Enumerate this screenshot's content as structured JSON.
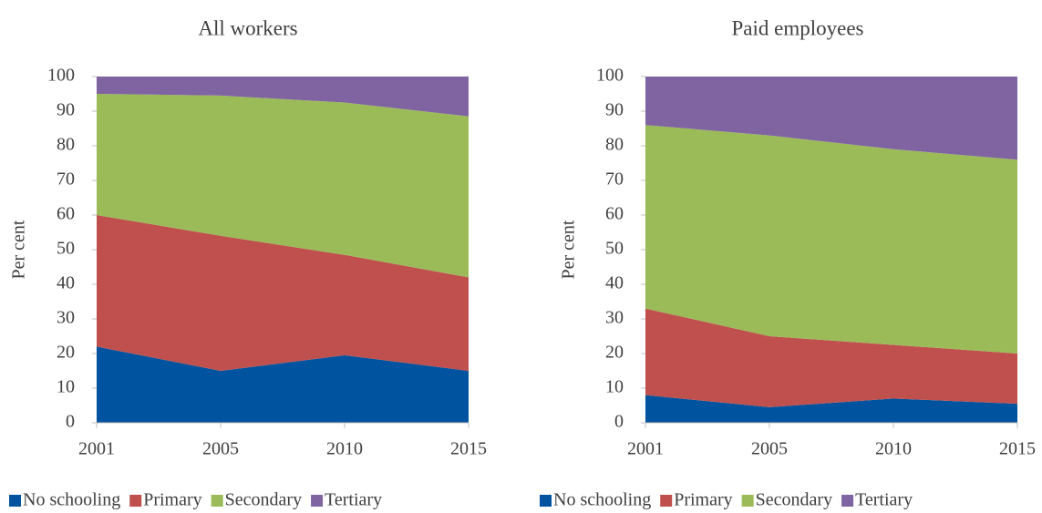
{
  "chart_data": [
    {
      "type": "area",
      "stacked": true,
      "title": "All workers",
      "ylabel": "Per cent",
      "categories": [
        "2001",
        "2005",
        "2010",
        "2015"
      ],
      "series": [
        {
          "name": "No schooling",
          "color": "#00539f",
          "values": [
            22,
            15,
            19.5,
            15
          ]
        },
        {
          "name": "Primary",
          "color": "#c0504d",
          "values": [
            38,
            39,
            29,
            27
          ]
        },
        {
          "name": "Secondary",
          "color": "#9bbb59",
          "values": [
            35,
            40.5,
            44,
            46.5
          ]
        },
        {
          "name": "Tertiary",
          "color": "#8064a2",
          "values": [
            5,
            5.5,
            7.5,
            11.5
          ]
        }
      ],
      "ylim": [
        0,
        100
      ],
      "yticks": [
        0,
        10,
        20,
        30,
        40,
        50,
        60,
        70,
        80,
        90,
        100
      ],
      "legend": "bottom"
    },
    {
      "type": "area",
      "stacked": true,
      "title": "Paid employees",
      "ylabel": "Per cent",
      "categories": [
        "2001",
        "2005",
        "2010",
        "2015"
      ],
      "series": [
        {
          "name": "No schooling",
          "color": "#00539f",
          "values": [
            8,
            4.5,
            7,
            5.5
          ]
        },
        {
          "name": "Primary",
          "color": "#c0504d",
          "values": [
            25,
            20.5,
            15.5,
            14.5
          ]
        },
        {
          "name": "Secondary",
          "color": "#9bbb59",
          "values": [
            53,
            58,
            56.5,
            56
          ]
        },
        {
          "name": "Tertiary",
          "color": "#8064a2",
          "values": [
            14,
            17,
            21,
            24
          ]
        }
      ],
      "ylim": [
        0,
        100
      ],
      "yticks": [
        0,
        10,
        20,
        30,
        40,
        50,
        60,
        70,
        80,
        90,
        100
      ],
      "legend": "bottom"
    }
  ]
}
